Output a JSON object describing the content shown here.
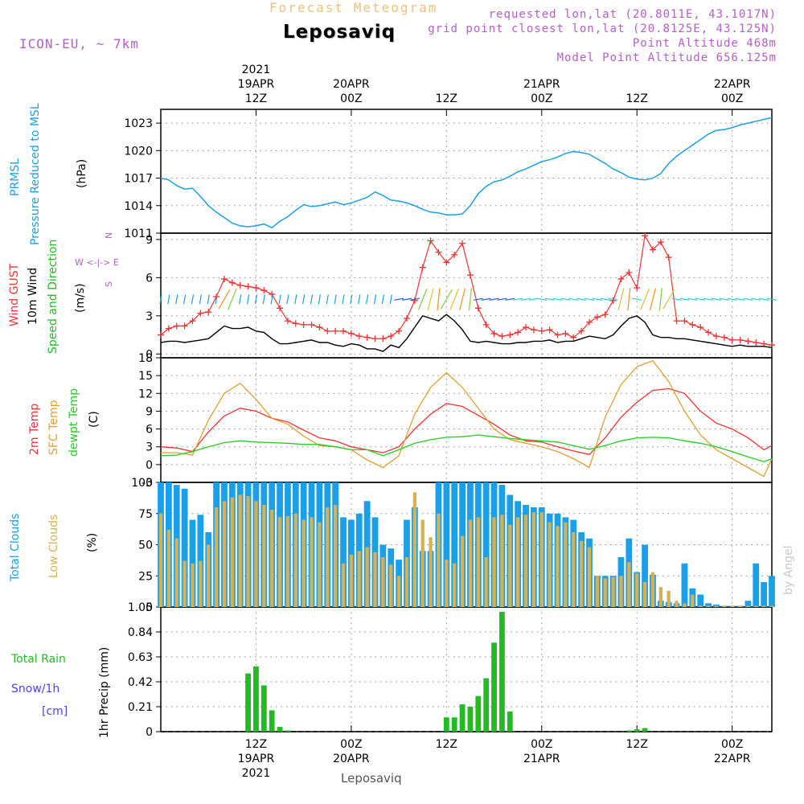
{
  "header": {
    "subtitle": "Forecast Meteogram",
    "location": "Leposaviq",
    "model": "ICON-EU, ~ 7km",
    "requested": "requested lon,lat (20.8011E, 43.1017N)",
    "gridpoint": "grid point closest lon,lat (20.8125E, 43.125N)",
    "point_alt": "Point Altitude 468m",
    "model_alt": "Model Point Altitude 656.125m"
  },
  "footer": {
    "location": "Leposaviq",
    "watermark": "by Angel"
  },
  "time_axis": {
    "year": "2021",
    "ticks": [
      {
        "hour": 12,
        "time": "12Z",
        "date": "19APR",
        "year": "2021"
      },
      {
        "hour": 24,
        "time": "00Z",
        "date": "20APR",
        "year": ""
      },
      {
        "hour": 36,
        "time": "12Z",
        "date": "",
        "year": ""
      },
      {
        "hour": 48,
        "time": "00Z",
        "date": "21APR",
        "year": ""
      },
      {
        "hour": 60,
        "time": "12Z",
        "date": "",
        "year": ""
      },
      {
        "hour": 72,
        "time": "00Z",
        "date": "22APR",
        "year": ""
      }
    ]
  },
  "colors": {
    "pressure": "#1aa0e8",
    "gust": "#ee3333",
    "wind": "#000000",
    "speed_dir": "#22bb22",
    "temp2m": "#ee3333",
    "sfc_temp": "#e0a030",
    "dewpt": "#22cc22",
    "total_clouds": "#1aa0e8",
    "low_clouds": "#d9b050",
    "rain": "#22bb22",
    "snow": "#4444ff",
    "compass": "#b35ec9"
  },
  "chart_data": [
    {
      "type": "line",
      "name": "pressure",
      "ylabels": [
        "PRMSL",
        "Pressure Reduced to MSL",
        "(hPa)"
      ],
      "ylim": [
        1011,
        1024.5
      ],
      "yticks": [
        1011,
        1014,
        1017,
        1020,
        1023
      ],
      "x": [
        0,
        1,
        2,
        3,
        4,
        5,
        6,
        7,
        8,
        9,
        10,
        11,
        12,
        13,
        14,
        15,
        16,
        17,
        18,
        19,
        20,
        21,
        22,
        23,
        24,
        25,
        26,
        27,
        28,
        29,
        30,
        31,
        32,
        33,
        34,
        35,
        36,
        37,
        38,
        39,
        40,
        41,
        42,
        43,
        44,
        45,
        46,
        47,
        48,
        49,
        50,
        51,
        52,
        53,
        54,
        55,
        56,
        57,
        58,
        59,
        60,
        61,
        62,
        63,
        64,
        65,
        66,
        67,
        68,
        69,
        70,
        71,
        72,
        73,
        74,
        75,
        76,
        77
      ],
      "values": [
        1017,
        1016.8,
        1016.2,
        1015.8,
        1015.9,
        1015,
        1014,
        1013.3,
        1012.7,
        1012.1,
        1011.8,
        1011.7,
        1011.8,
        1012,
        1011.6,
        1012.3,
        1012.8,
        1013.5,
        1014.1,
        1013.9,
        1014,
        1014.2,
        1014.4,
        1014.1,
        1014.3,
        1014.6,
        1014.9,
        1015.5,
        1015.1,
        1014.6,
        1014.5,
        1014.3,
        1014,
        1013.6,
        1013.3,
        1013.2,
        1013,
        1013,
        1013.1,
        1014,
        1015.3,
        1016.1,
        1016.6,
        1016.8,
        1017.2,
        1017.7,
        1018,
        1018.4,
        1018.8,
        1019,
        1019.3,
        1019.7,
        1019.9,
        1019.8,
        1019.6,
        1019.1,
        1018.6,
        1018,
        1017.6,
        1017.1,
        1016.9,
        1016.8,
        1017,
        1017.5,
        1018.6,
        1019.4,
        1020,
        1020.6,
        1021.2,
        1021.8,
        1022.2,
        1022.3,
        1022.5,
        1022.8,
        1023,
        1023.2,
        1023.4,
        1023.6
      ]
    },
    {
      "type": "line",
      "name": "wind",
      "ylabels": [
        "Wind GUST",
        "10m Wind",
        "Speed and Direction",
        "(m/s)"
      ],
      "compass": [
        "N",
        "W <-|-> E",
        "S"
      ],
      "ylim": [
        -0.3,
        9.5
      ],
      "yticks": [
        0,
        3,
        6,
        9
      ],
      "x": [
        0,
        1,
        2,
        3,
        4,
        5,
        6,
        7,
        8,
        9,
        10,
        11,
        12,
        13,
        14,
        15,
        16,
        17,
        18,
        19,
        20,
        21,
        22,
        23,
        24,
        25,
        26,
        27,
        28,
        29,
        30,
        31,
        32,
        33,
        34,
        35,
        36,
        37,
        38,
        39,
        40,
        41,
        42,
        43,
        44,
        45,
        46,
        47,
        48,
        49,
        50,
        51,
        52,
        53,
        54,
        55,
        56,
        57,
        58,
        59,
        60,
        61,
        62,
        63,
        64,
        65,
        66,
        67,
        68,
        69,
        70,
        71,
        72,
        73,
        74,
        75,
        76,
        77
      ],
      "series": [
        {
          "name": "Wind GUST",
          "values": [
            1.5,
            2,
            2.2,
            2.2,
            2.6,
            3.2,
            3.3,
            4.5,
            5.9,
            5.6,
            5.4,
            5.3,
            5.2,
            5,
            4.7,
            3.6,
            2.6,
            2.4,
            2.3,
            2.3,
            2.1,
            1.8,
            1.8,
            1.8,
            1.6,
            1.4,
            1.3,
            1.2,
            1.2,
            1.4,
            1.8,
            2.8,
            4.2,
            6.8,
            8.9,
            8,
            7.2,
            7.8,
            8.7,
            6.2,
            3.6,
            2.3,
            1.6,
            1.4,
            1.5,
            1.7,
            2.1,
            1.9,
            1.8,
            1.9,
            1.5,
            1.6,
            1.3,
            1.8,
            2.5,
            2.9,
            3.1,
            4.2,
            5.9,
            6.4,
            5.2,
            9.3,
            8.2,
            8.8,
            7.6,
            2.6,
            2.6,
            2.3,
            2.1,
            1.7,
            1.4,
            1.3,
            1.1,
            1.1,
            1,
            0.9,
            0.8,
            0.7
          ]
        },
        {
          "name": "10m Wind",
          "values": [
            0.9,
            1,
            1,
            0.9,
            1,
            1.1,
            1.2,
            1.7,
            2.2,
            2,
            2,
            2.1,
            1.8,
            1.7,
            1.2,
            0.8,
            0.8,
            0.9,
            1,
            1.1,
            0.9,
            0.9,
            0.7,
            0.6,
            0.8,
            0.7,
            0.4,
            0.4,
            0.2,
            0.7,
            0.5,
            1.2,
            2.1,
            3,
            2.8,
            2.6,
            3.1,
            2.6,
            1.9,
            1,
            0.9,
            1,
            0.9,
            0.8,
            0.8,
            0.9,
            0.9,
            1,
            1,
            1.1,
            0.9,
            1,
            1,
            1.2,
            1.4,
            1.3,
            1.2,
            1.5,
            2.2,
            2.8,
            3,
            2.5,
            1.5,
            1.3,
            1.3,
            1.2,
            1.2,
            1.1,
            1,
            0.9,
            0.8,
            0.7,
            0.6,
            0.7,
            0.6,
            0.6,
            0.6,
            0.5
          ]
        }
      ]
    },
    {
      "type": "line",
      "name": "temperature",
      "ylabels": [
        "2m Temp",
        "SFC Temp",
        "dewpt Temp",
        "(C)"
      ],
      "ylim": [
        -3,
        18
      ],
      "yticks": [
        -3,
        0,
        3,
        6,
        9,
        12,
        15,
        18
      ],
      "x": [
        0,
        2,
        4,
        6,
        8,
        10,
        12,
        14,
        16,
        18,
        20,
        22,
        24,
        26,
        28,
        30,
        32,
        34,
        36,
        38,
        40,
        42,
        44,
        46,
        48,
        50,
        52,
        54,
        56,
        58,
        60,
        62,
        64,
        66,
        68,
        70,
        72,
        74,
        76,
        77
      ],
      "series": [
        {
          "name": "2m Temp",
          "values": [
            3,
            2.8,
            2.2,
            5.5,
            8.2,
            9.5,
            9,
            7.8,
            7.2,
            5.8,
            4.5,
            4,
            3,
            2.5,
            2,
            3,
            6,
            8.5,
            10.3,
            9.8,
            8.3,
            6.8,
            5,
            4,
            3.8,
            3,
            2.3,
            1.7,
            4.5,
            8,
            10.5,
            12.5,
            12.8,
            12,
            9,
            7,
            6,
            4.5,
            2.5,
            3.2
          ]
        },
        {
          "name": "SFC Temp",
          "values": [
            2,
            2,
            1.6,
            7.5,
            12,
            13.7,
            11,
            7.8,
            6.8,
            4.8,
            3.2,
            3,
            2.5,
            0.8,
            -0.5,
            1.5,
            8.5,
            13,
            15.5,
            13,
            9.5,
            6,
            4.2,
            3.6,
            3,
            2.2,
            1,
            -0.5,
            8,
            13.5,
            16.5,
            17.5,
            14,
            9,
            5,
            2.5,
            1,
            -0.5,
            -2,
            1
          ]
        },
        {
          "name": "dewpt Temp",
          "values": [
            1.5,
            1.6,
            2.2,
            3,
            3.7,
            4,
            3.8,
            3.7,
            3.6,
            3.4,
            3.4,
            3,
            2.5,
            2.5,
            1.5,
            2.5,
            3.6,
            4.2,
            4.6,
            4.7,
            5,
            4.7,
            4.4,
            4.2,
            4,
            3.8,
            3.2,
            2.6,
            3.2,
            4,
            4.5,
            4.6,
            4.5,
            4,
            3.6,
            3,
            2.2,
            1.3,
            0.5,
            1
          ]
        }
      ]
    },
    {
      "type": "bar",
      "name": "clouds",
      "ylabels": [
        "Total Clouds",
        "Low Clouds",
        "(%)"
      ],
      "ylim": [
        0,
        100
      ],
      "yticks": [
        0,
        25,
        50,
        75,
        100
      ],
      "x": [
        0,
        1,
        2,
        3,
        4,
        5,
        6,
        7,
        8,
        9,
        10,
        11,
        12,
        13,
        14,
        15,
        16,
        17,
        18,
        19,
        20,
        21,
        22,
        23,
        24,
        25,
        26,
        27,
        28,
        29,
        30,
        31,
        32,
        33,
        34,
        35,
        36,
        37,
        38,
        39,
        40,
        41,
        42,
        43,
        44,
        45,
        46,
        47,
        48,
        49,
        50,
        51,
        52,
        53,
        54,
        55,
        56,
        57,
        58,
        59,
        60,
        61,
        62,
        63,
        64,
        65,
        66,
        67,
        68,
        69,
        70,
        71,
        72,
        73,
        74,
        75,
        76,
        77
      ],
      "series": [
        {
          "name": "Total Clouds",
          "values": [
            100,
            100,
            98,
            95,
            70,
            74,
            60,
            100,
            100,
            100,
            100,
            100,
            100,
            100,
            100,
            100,
            100,
            100,
            100,
            100,
            100,
            100,
            100,
            72,
            70,
            75,
            85,
            72,
            50,
            47,
            38,
            70,
            80,
            45,
            45,
            100,
            100,
            100,
            100,
            100,
            100,
            100,
            100,
            98,
            90,
            85,
            82,
            80,
            80,
            75,
            75,
            72,
            70,
            60,
            55,
            25,
            25,
            25,
            40,
            55,
            28,
            50,
            26,
            5,
            4,
            3,
            35,
            15,
            10,
            3,
            2,
            1,
            1,
            1,
            5,
            35,
            20,
            25
          ]
        },
        {
          "name": "Low Clouds",
          "values": [
            75,
            62,
            55,
            37,
            35,
            37,
            50,
            80,
            85,
            88,
            90,
            89,
            85,
            82,
            78,
            72,
            73,
            75,
            70,
            72,
            68,
            80,
            82,
            35,
            42,
            45,
            48,
            44,
            40,
            34,
            25,
            40,
            92,
            70,
            56,
            75,
            38,
            35,
            57,
            70,
            72,
            40,
            72,
            74,
            66,
            72,
            74,
            76,
            76,
            68,
            65,
            68,
            60,
            53,
            48,
            25,
            23,
            24,
            25,
            36,
            27,
            20,
            28,
            16,
            13,
            5,
            3,
            10,
            1,
            1,
            1,
            1,
            1,
            1,
            1,
            1,
            1,
            1
          ]
        }
      ]
    },
    {
      "type": "bar",
      "name": "precip",
      "ylabels": [
        "Total Rain",
        "Snow/1h",
        "[cm]",
        "1hr Precip (mm)"
      ],
      "ylim": [
        0,
        1.05
      ],
      "yticks": [
        0,
        0.21,
        0.42,
        0.63,
        0.84,
        1.05
      ],
      "x": [
        11,
        12,
        13,
        14,
        15,
        16,
        36,
        37,
        38,
        39,
        40,
        41,
        42,
        43,
        44,
        59,
        60,
        61
      ],
      "values": [
        0.49,
        0.55,
        0.39,
        0.18,
        0.04,
        0.01,
        0.12,
        0.12,
        0.23,
        0.21,
        0.3,
        0.45,
        0.75,
        1.01,
        0.17,
        0.01,
        0.02,
        0.03
      ]
    }
  ]
}
